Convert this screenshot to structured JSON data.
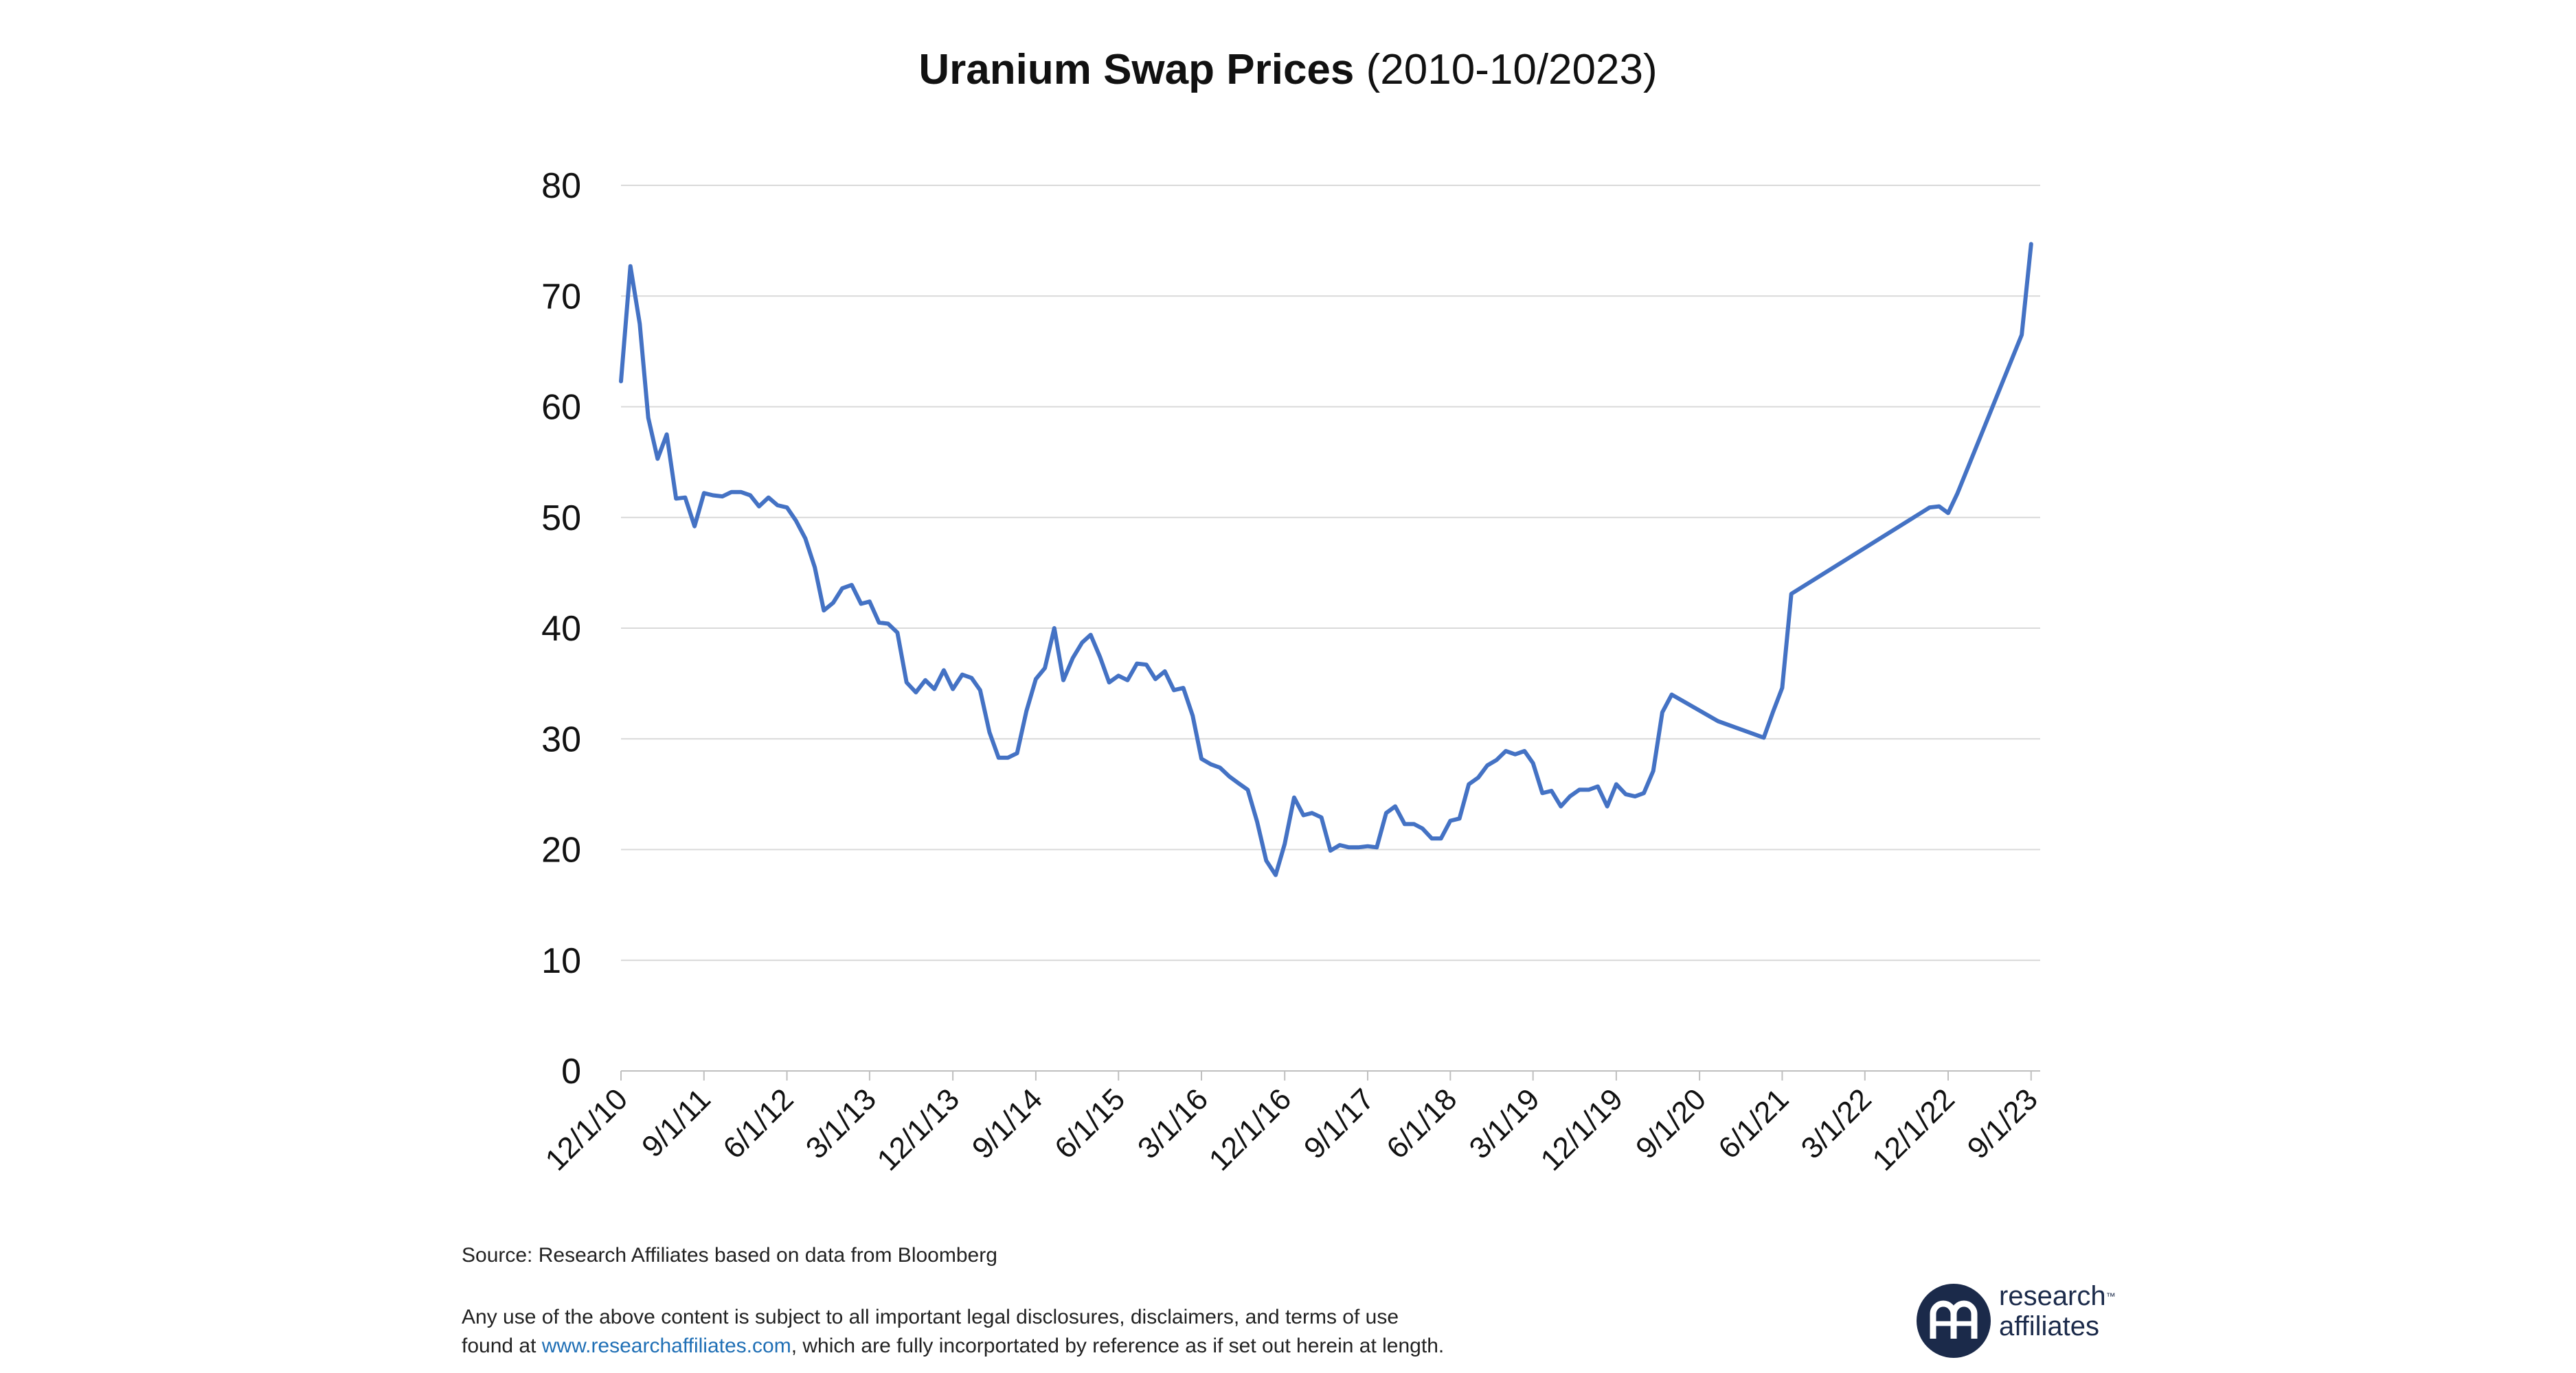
{
  "chart_data": {
    "type": "line",
    "title": "Uranium Swap Prices",
    "subtitle": "(2010-10/2023)",
    "xlabel": "",
    "ylabel": "",
    "ylim": [
      0,
      80
    ],
    "yticks": [
      0,
      10,
      20,
      30,
      40,
      50,
      60,
      70,
      80
    ],
    "xlim": [
      "2010-12-01",
      "2023-10-01"
    ],
    "xtick_labels": [
      "12/1/10",
      "9/1/11",
      "6/1/12",
      "3/1/13",
      "12/1/13",
      "9/1/14",
      "6/1/15",
      "3/1/16",
      "12/1/16",
      "9/1/17",
      "6/1/18",
      "3/1/19",
      "12/1/19",
      "9/1/20",
      "6/1/21",
      "3/1/22",
      "12/1/22",
      "9/1/23"
    ],
    "xtick_dates": [
      "2010-12-01",
      "2011-09-01",
      "2012-06-01",
      "2013-03-01",
      "2013-12-01",
      "2014-09-01",
      "2015-06-01",
      "2016-03-01",
      "2016-12-01",
      "2017-09-01",
      "2018-06-01",
      "2019-03-01",
      "2019-12-01",
      "2020-09-01",
      "2021-06-01",
      "2022-03-01",
      "2022-12-01",
      "2023-09-01"
    ],
    "grid": "horizontal",
    "legend": "none",
    "series": [
      {
        "color": "#4472c4",
        "x": [
          "2010-12-01",
          "2011-01-01",
          "2011-02-01",
          "2011-03-01",
          "2011-04-01",
          "2011-05-01",
          "2011-06-01",
          "2011-07-01",
          "2011-08-01",
          "2011-09-01",
          "2011-10-01",
          "2011-11-01",
          "2011-12-01",
          "2012-01-01",
          "2012-02-01",
          "2012-03-01",
          "2012-04-01",
          "2012-05-01",
          "2012-06-01",
          "2012-07-01",
          "2012-08-01",
          "2012-09-01",
          "2012-10-01",
          "2012-11-01",
          "2012-12-01",
          "2013-01-01",
          "2013-02-01",
          "2013-03-01",
          "2013-04-01",
          "2013-05-01",
          "2013-06-01",
          "2013-07-01",
          "2013-08-01",
          "2013-09-01",
          "2013-10-01",
          "2013-11-01",
          "2013-12-01",
          "2014-01-01",
          "2014-02-01",
          "2014-03-01",
          "2014-04-01",
          "2014-05-01",
          "2014-06-01",
          "2014-07-01",
          "2014-08-01",
          "2014-09-01",
          "2014-10-01",
          "2014-11-01",
          "2014-12-01",
          "2015-01-01",
          "2015-02-01",
          "2015-03-01",
          "2015-04-01",
          "2015-05-01",
          "2015-06-01",
          "2015-07-01",
          "2015-08-01",
          "2015-09-01",
          "2015-10-01",
          "2015-11-01",
          "2015-12-01",
          "2016-01-01",
          "2016-02-01",
          "2016-03-01",
          "2016-04-01",
          "2016-05-01",
          "2016-06-01",
          "2016-07-01",
          "2016-08-01",
          "2016-09-01",
          "2016-10-01",
          "2016-11-01",
          "2016-12-01",
          "2017-01-01",
          "2017-02-01",
          "2017-03-01",
          "2017-04-01",
          "2017-05-01",
          "2017-06-01",
          "2017-07-01",
          "2017-08-01",
          "2017-09-01",
          "2017-10-01",
          "2017-11-01",
          "2017-12-01",
          "2018-01-01",
          "2018-02-01",
          "2018-03-01",
          "2018-04-01",
          "2018-05-01",
          "2018-06-01",
          "2018-07-01",
          "2018-08-01",
          "2018-09-01",
          "2018-10-01",
          "2018-11-01",
          "2018-12-01",
          "2019-01-01",
          "2019-02-01",
          "2019-03-01",
          "2019-04-01",
          "2019-05-01",
          "2019-06-01",
          "2019-07-01",
          "2019-08-01",
          "2019-09-01",
          "2019-10-01",
          "2019-11-01",
          "2019-12-01",
          "2020-01-01",
          "2020-02-01",
          "2020-03-01",
          "2020-04-01",
          "2020-05-01",
          "2020-06-01",
          "2020-11-01",
          "2021-04-01",
          "2021-05-01",
          "2021-06-01",
          "2021-07-01",
          "2022-10-01",
          "2022-11-01",
          "2022-12-01",
          "2023-01-01",
          "2023-08-01",
          "2023-09-01"
        ],
        "y": [
          62.3,
          72.7,
          67.5,
          59.0,
          55.3,
          57.5,
          51.7,
          51.8,
          49.2,
          52.2,
          52.0,
          51.9,
          52.3,
          52.3,
          52.0,
          51.0,
          51.8,
          51.1,
          50.9,
          49.7,
          48.1,
          45.5,
          41.6,
          42.3,
          43.6,
          43.9,
          42.2,
          42.4,
          40.5,
          40.4,
          39.6,
          35.1,
          34.2,
          35.3,
          34.5,
          36.2,
          34.5,
          35.8,
          35.5,
          34.4,
          30.6,
          28.3,
          28.3,
          28.7,
          32.5,
          35.4,
          36.4,
          40.0,
          35.3,
          37.3,
          38.7,
          39.4,
          37.4,
          35.1,
          35.7,
          35.3,
          36.8,
          36.7,
          35.4,
          36.1,
          34.4,
          34.6,
          32.1,
          28.2,
          27.7,
          27.4,
          26.6,
          26.0,
          25.4,
          22.5,
          19.0,
          17.7,
          20.5,
          24.7,
          23.1,
          23.3,
          22.9,
          19.9,
          20.4,
          20.2,
          20.2,
          20.3,
          20.2,
          23.3,
          23.9,
          22.3,
          22.3,
          21.9,
          21.0,
          21.0,
          22.6,
          22.8,
          25.9,
          26.5,
          27.6,
          28.1,
          28.9,
          28.6,
          28.9,
          27.8,
          25.1,
          25.3,
          23.9,
          24.8,
          25.4,
          25.4,
          25.7,
          23.9,
          25.9,
          25.0,
          24.8,
          25.1,
          27.1,
          32.4,
          34.0,
          31.6,
          30.1,
          32.4,
          34.6,
          43.1,
          50.9,
          51.0,
          50.4,
          52.2,
          66.5,
          74.7
        ]
      }
    ]
  },
  "footer": {
    "source": "Source: Research Affiliates based on data from Bloomberg",
    "disclaimer_line1": "Any use of the above content is subject to all important legal disclosures, disclaimers, and terms of use",
    "disclaimer_line2_prefix": "found at ",
    "disclaimer_link": "www.researchaffiliates.com",
    "disclaimer_line2_suffix": ", which are fully incorportated by reference as if set out herein at length."
  },
  "logo": {
    "line1": "research",
    "line2": "affiliates",
    "tm": "™",
    "color": "#1b2a4a"
  }
}
